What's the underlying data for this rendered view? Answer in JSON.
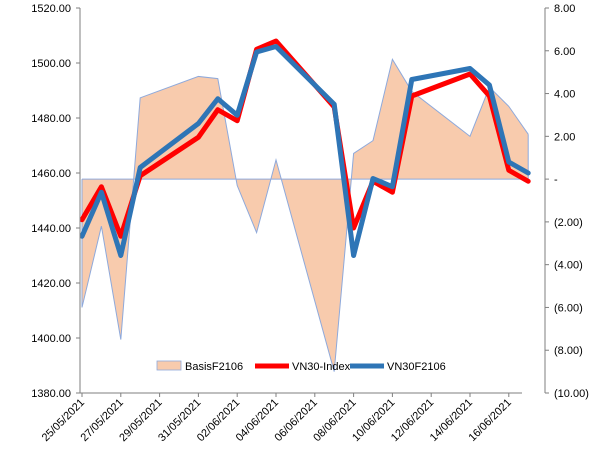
{
  "chart_data": {
    "type": "line",
    "x": [
      "25/05/2021",
      "26/05/2021",
      "27/05/2021",
      "28/05/2021",
      "31/05/2021",
      "01/06/2021",
      "02/06/2021",
      "03/06/2021",
      "04/06/2021",
      "07/06/2021",
      "08/06/2021",
      "09/06/2021",
      "10/06/2021",
      "11/06/2021",
      "14/06/2021",
      "15/06/2021",
      "16/06/2021",
      "17/06/2021"
    ],
    "x_tick_labels": [
      "25/05/2021",
      "27/05/2021",
      "29/05/2021",
      "31/05/2021",
      "02/06/2021",
      "04/06/2021",
      "06/06/2021",
      "08/06/2021",
      "10/06/2021",
      "12/06/2021",
      "14/06/2021",
      "16/06/2021"
    ],
    "series": [
      {
        "name": "BasisF2106",
        "type": "area",
        "axis": "right",
        "color": "#f8cbad",
        "edge_color": "#8ea9db",
        "values": [
          -6.0,
          -2.2,
          -7.5,
          3.8,
          4.8,
          4.7,
          -0.3,
          -2.5,
          0.9,
          -9.0,
          1.2,
          1.8,
          5.6,
          4.1,
          2.0,
          4.3,
          3.4,
          2.1
        ]
      },
      {
        "name": "VN30-Index",
        "type": "line",
        "axis": "left",
        "color": "#ff0000",
        "values": [
          1443,
          1455,
          1437,
          1459,
          1473,
          1483,
          1479,
          1505,
          1508,
          1484,
          1440,
          1457,
          1453,
          1488,
          1496,
          1488,
          1461,
          1457
        ]
      },
      {
        "name": "VN30F2106",
        "type": "line",
        "axis": "left",
        "color": "#2e75b6",
        "values": [
          1437,
          1453,
          1430,
          1462,
          1478,
          1487,
          1481,
          1504,
          1506,
          1485,
          1430,
          1458,
          1455,
          1494,
          1498,
          1492,
          1464,
          1460
        ]
      }
    ],
    "y_left": {
      "ylim": [
        1380,
        1520
      ],
      "ticks": [
        "1380.00",
        "1400.00",
        "1420.00",
        "1440.00",
        "1460.00",
        "1480.00",
        "1500.00",
        "1520.00"
      ]
    },
    "y_right": {
      "ylim": [
        -10,
        8
      ],
      "ticks": [
        "(10.00)",
        "(8.00)",
        "(6.00)",
        "(4.00)",
        "(2.00)",
        "-",
        "2.00",
        "4.00",
        "6.00",
        "8.00"
      ]
    },
    "grid": false,
    "legend_position": "bottom-inside"
  }
}
